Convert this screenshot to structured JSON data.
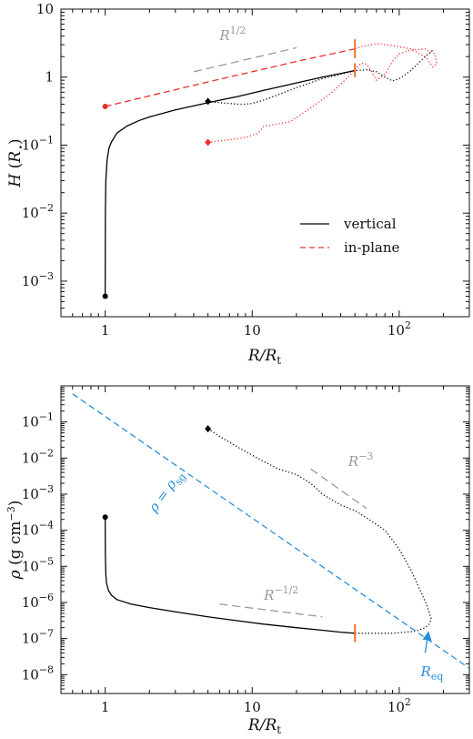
{
  "chart_data": [
    {
      "type": "line",
      "xlabel": "R/R_t",
      "ylabel": "H (R_⋆)",
      "xscale": "log",
      "yscale": "log",
      "xlim": [
        0.5,
        300
      ],
      "ylim": [
        0.0003,
        10
      ],
      "x_ticks": [
        {
          "value": 1,
          "base": "1",
          "sup": ""
        },
        {
          "value": 10,
          "base": "10",
          "sup": ""
        },
        {
          "value": 100,
          "base": "10",
          "sup": "2"
        }
      ],
      "y_ticks": [
        {
          "value": 0.001,
          "base": "10",
          "sup": "−3"
        },
        {
          "value": 0.01,
          "base": "10",
          "sup": "−2"
        },
        {
          "value": 0.1,
          "base": "10",
          "sup": "−1"
        },
        {
          "value": 1,
          "base": "1",
          "sup": ""
        },
        {
          "value": 10,
          "base": "10",
          "sup": ""
        }
      ],
      "legend": {
        "position": "lower-right",
        "entries": [
          {
            "label": "vertical",
            "color": "#000000",
            "dash": "solid"
          },
          {
            "label": "in-plane",
            "color": "#e8302a",
            "dash": "dashed"
          }
        ]
      },
      "series": [
        {
          "name": "vertical",
          "color": "#000000",
          "style": "solid",
          "x": [
            1,
            1.003,
            1.01,
            1.03,
            1.06,
            1.1,
            1.2,
            1.4,
            1.7,
            2,
            3,
            5,
            8,
            12,
            20,
            30,
            40,
            50
          ],
          "y": [
            0.0006,
            0.01,
            0.03,
            0.06,
            0.09,
            0.11,
            0.15,
            0.19,
            0.23,
            0.26,
            0.33,
            0.42,
            0.52,
            0.64,
            0.82,
            1.0,
            1.13,
            1.25
          ]
        },
        {
          "name": "in-plane",
          "color": "#e8302a",
          "style": "dashed",
          "x": [
            1,
            2,
            5,
            10,
            20,
            50
          ],
          "y": [
            0.37,
            0.53,
            0.85,
            1.2,
            1.7,
            2.6
          ]
        },
        {
          "color": "#000000",
          "style": "dotted",
          "x": [
            5,
            6,
            7,
            8,
            9,
            10,
            12,
            15,
            20,
            30,
            40,
            50,
            60,
            70,
            80,
            90,
            100,
            120,
            150,
            170
          ],
          "y": [
            0.44,
            0.42,
            0.41,
            0.4,
            0.4,
            0.41,
            0.46,
            0.55,
            0.7,
            0.95,
            1.1,
            1.25,
            1.28,
            1.2,
            1.0,
            0.88,
            0.95,
            1.25,
            2.0,
            2.5
          ]
        },
        {
          "color": "#e8302a",
          "style": "dotted",
          "x": [
            5,
            7,
            9,
            10,
            11,
            12,
            14,
            18,
            25,
            35,
            45,
            50,
            55,
            60,
            65,
            70,
            80,
            90,
            100,
            120,
            150,
            175,
            180,
            170,
            150,
            120,
            90,
            70,
            60,
            55,
            50
          ],
          "y": [
            0.11,
            0.12,
            0.13,
            0.14,
            0.15,
            0.19,
            0.2,
            0.22,
            0.35,
            0.6,
            1.0,
            1.3,
            1.6,
            1.55,
            1.2,
            0.9,
            1.1,
            1.7,
            2.2,
            2.5,
            2.6,
            2.2,
            1.6,
            1.4,
            2.0,
            2.6,
            2.9,
            3.1,
            2.9,
            2.8,
            2.6
          ]
        }
      ],
      "markers": [
        {
          "x": 1,
          "y": 0.0006,
          "shape": "circle",
          "color": "#000000"
        },
        {
          "x": 1,
          "y": 0.37,
          "shape": "circle",
          "color": "#e8302a"
        },
        {
          "x": 5,
          "y": 0.44,
          "shape": "diamond",
          "color": "#000000"
        },
        {
          "x": 5,
          "y": 0.11,
          "shape": "diamond",
          "color": "#e8302a"
        }
      ],
      "vmarks": [
        {
          "x": 50,
          "y_low": 1.9,
          "y_high": 3.6,
          "color": "#f07020"
        },
        {
          "x": 50,
          "y_low": 1.0,
          "y_high": 1.6,
          "color": "#f07020"
        }
      ],
      "guides": [
        {
          "label_base": "R",
          "label_sup": "1/2",
          "color": "#999999",
          "x": [
            4,
            20
          ],
          "y": [
            1.2,
            2.7
          ],
          "label_x": 6,
          "label_y": 3.5
        }
      ]
    },
    {
      "type": "line",
      "xlabel": "R/R_t",
      "ylabel": "ρ (g cm⁻³)",
      "xscale": "log",
      "yscale": "log",
      "xlim": [
        0.5,
        300
      ],
      "ylim": [
        3e-09,
        1
      ],
      "x_ticks": [
        {
          "value": 1,
          "base": "1",
          "sup": ""
        },
        {
          "value": 10,
          "base": "10",
          "sup": ""
        },
        {
          "value": 100,
          "base": "10",
          "sup": "2"
        }
      ],
      "y_ticks": [
        {
          "value": 1e-08,
          "base": "10",
          "sup": "−8"
        },
        {
          "value": 1e-07,
          "base": "10",
          "sup": "−7"
        },
        {
          "value": 1e-06,
          "base": "10",
          "sup": "−6"
        },
        {
          "value": 1e-05,
          "base": "10",
          "sup": "−5"
        },
        {
          "value": 0.0001,
          "base": "10",
          "sup": "−4"
        },
        {
          "value": 0.001,
          "base": "10",
          "sup": "−3"
        },
        {
          "value": 0.01,
          "base": "10",
          "sup": "−2"
        },
        {
          "value": 0.1,
          "base": "10",
          "sup": "−1"
        }
      ],
      "series": [
        {
          "color": "#000000",
          "style": "solid",
          "x": [
            1,
            1.003,
            1.01,
            1.02,
            1.05,
            1.1,
            1.2,
            1.5,
            2,
            3,
            5,
            8,
            12,
            20,
            30,
            40,
            50
          ],
          "y": [
            0.00023,
            2e-05,
            6e-06,
            3.5e-06,
            2.2e-06,
            1.6e-06,
            1.2e-06,
            9e-07,
            7.2e-07,
            5.5e-07,
            4e-07,
            3.1e-07,
            2.5e-07,
            2e-07,
            1.7e-07,
            1.5e-07,
            1.4e-07
          ]
        },
        {
          "color": "#000000",
          "style": "dotted",
          "x": [
            5,
            6,
            8,
            10,
            12,
            15,
            20,
            25,
            30,
            40,
            50,
            60,
            80,
            100,
            120,
            140,
            155,
            165,
            160,
            150,
            130,
            110,
            90,
            70,
            55,
            50
          ],
          "y": [
            0.065,
            0.04,
            0.02,
            0.012,
            0.008,
            0.005,
            0.0035,
            0.002,
            0.001,
            0.0005,
            0.00035,
            0.00022,
            0.0001,
            3e-05,
            8e-06,
            2e-06,
            8e-07,
            3.5e-07,
            2.5e-07,
            2e-07,
            1.6e-07,
            1.5e-07,
            1.4e-07,
            1.4e-07,
            1.4e-07,
            1.4e-07
          ]
        },
        {
          "color": "#2a8fd8",
          "style": "dashed",
          "x": [
            0.6,
            300
          ],
          "y": [
            0.6,
            1.5e-08
          ]
        }
      ],
      "markers": [
        {
          "x": 1,
          "y": 0.00023,
          "shape": "circle",
          "color": "#000000"
        },
        {
          "x": 5,
          "y": 0.065,
          "shape": "diamond",
          "color": "#000000"
        }
      ],
      "vmarks": [
        {
          "x": 50,
          "y_low": 8e-08,
          "y_high": 2.5e-07,
          "color": "#f07020"
        }
      ],
      "guides": [
        {
          "label_base": "R",
          "label_sup": "−3",
          "color": "#999999",
          "x": [
            25,
            60
          ],
          "y": [
            0.005,
            0.0004
          ],
          "label_x": 45,
          "label_y": 0.006
        },
        {
          "label_base": "R",
          "label_sup": "−1/2",
          "color": "#999999",
          "x": [
            6,
            30
          ],
          "y": [
            9e-07,
            4e-07
          ],
          "label_x": 12,
          "label_y": 1.2e-06
        }
      ],
      "text_annotations": [
        {
          "base": "ρ = ρ",
          "sub": "sg",
          "color": "#2a8fd8",
          "x": 2.2,
          "y": 0.0003,
          "rotate": -54
        },
        {
          "base": "R",
          "sub": "eq",
          "color": "#2a8fd8",
          "x": 140,
          "y": 9e-09
        }
      ],
      "arrow": {
        "color": "#2a8fd8",
        "x": 150,
        "y_from": 4e-08,
        "y_to": 1.7e-07
      }
    }
  ]
}
